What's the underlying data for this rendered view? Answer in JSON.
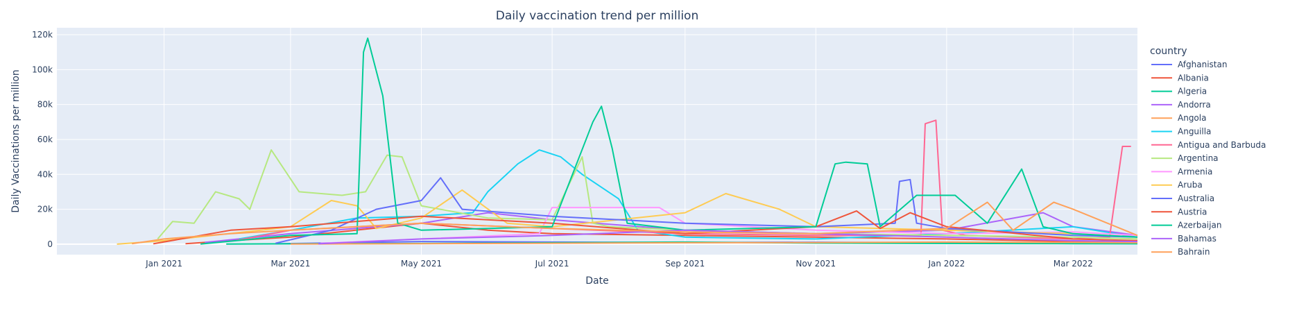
{
  "chart_data": {
    "type": "line",
    "title": "Daily vaccination trend per million",
    "xlabel": "Date",
    "ylabel": "Daily Vaccinations per million",
    "x_range": [
      "2020-11-12",
      "2022-03-31"
    ],
    "ylim": [
      -6000,
      124000
    ],
    "y_ticks": [
      {
        "value": 0,
        "label": "0"
      },
      {
        "value": 20000,
        "label": "20k"
      },
      {
        "value": 40000,
        "label": "40k"
      },
      {
        "value": 60000,
        "label": "60k"
      },
      {
        "value": 80000,
        "label": "80k"
      },
      {
        "value": 100000,
        "label": "100k"
      },
      {
        "value": 120000,
        "label": "120k"
      }
    ],
    "x_ticks": [
      {
        "value": "2021-01-01",
        "label": "Jan 2021"
      },
      {
        "value": "2021-03-01",
        "label": "Mar 2021"
      },
      {
        "value": "2021-05-01",
        "label": "May 2021"
      },
      {
        "value": "2021-07-01",
        "label": "Jul 2021"
      },
      {
        "value": "2021-09-01",
        "label": "Sep 2021"
      },
      {
        "value": "2021-11-01",
        "label": "Nov 2021"
      },
      {
        "value": "2022-01-01",
        "label": "Jan 2022"
      },
      {
        "value": "2022-03-01",
        "label": "Mar 2022"
      }
    ],
    "grid": true,
    "legend_title": "country",
    "legend_position": "right",
    "series": [
      {
        "name": "Afghanistan",
        "color": "#636efa",
        "x": [
          "2021-02-22",
          "2021-05-01",
          "2021-07-01",
          "2021-09-01",
          "2021-11-01",
          "2022-01-01",
          "2022-03-01",
          "2022-03-31"
        ],
        "y": [
          200,
          1500,
          1200,
          900,
          1100,
          800,
          600,
          500
        ]
      },
      {
        "name": "Albania",
        "color": "#EF553B",
        "x": [
          "2021-01-11",
          "2021-02-01",
          "2021-03-01",
          "2021-05-01",
          "2021-06-01",
          "2021-07-01",
          "2021-09-01",
          "2021-11-01",
          "2022-01-01",
          "2022-03-01",
          "2022-03-31"
        ],
        "y": [
          300,
          2000,
          4000,
          12000,
          8000,
          6000,
          5000,
          4000,
          3000,
          1500,
          1000
        ]
      },
      {
        "name": "Algeria",
        "color": "#00cc96",
        "x": [
          "2021-01-30",
          "2021-05-01",
          "2021-07-01",
          "2021-09-01",
          "2021-11-01",
          "2022-01-01",
          "2022-03-01",
          "2022-03-31"
        ],
        "y": [
          100,
          400,
          800,
          1200,
          600,
          400,
          300,
          200
        ]
      },
      {
        "name": "Andorra",
        "color": "#ab63fa",
        "x": [
          "2021-01-20",
          "2021-03-01",
          "2021-05-01",
          "2021-06-01",
          "2021-07-01",
          "2021-09-01",
          "2021-11-01",
          "2022-01-01",
          "2022-02-15",
          "2022-03-01",
          "2022-03-31"
        ],
        "y": [
          1000,
          6000,
          12000,
          18000,
          14000,
          8000,
          6000,
          8000,
          18000,
          10000,
          5000
        ]
      },
      {
        "name": "Angola",
        "color": "#FFA15A",
        "x": [
          "2021-03-01",
          "2021-05-01",
          "2021-07-01",
          "2021-09-01",
          "2021-11-01",
          "2022-01-01",
          "2022-03-01",
          "2022-03-31"
        ],
        "y": [
          100,
          300,
          500,
          800,
          900,
          1200,
          1000,
          800
        ]
      },
      {
        "name": "Anguilla",
        "color": "#19d3f3",
        "x": [
          "2021-02-05",
          "2021-03-01",
          "2021-04-01",
          "2021-05-01",
          "2021-05-25",
          "2021-06-01",
          "2021-06-15",
          "2021-06-25",
          "2021-07-05",
          "2021-07-15",
          "2021-08-01",
          "2021-08-10",
          "2021-09-01",
          "2021-11-01",
          "2022-01-01",
          "2022-03-01",
          "2022-03-31"
        ],
        "y": [
          3000,
          8000,
          15000,
          16000,
          18000,
          30000,
          46000,
          54000,
          50000,
          40000,
          26000,
          8000,
          4000,
          3000,
          6000,
          10000,
          4000
        ]
      },
      {
        "name": "Antigua and Barbuda",
        "color": "#FF6692",
        "x": [
          "2021-02-03",
          "2021-03-01",
          "2021-04-01",
          "2021-05-01",
          "2021-07-01",
          "2021-09-01",
          "2021-11-01",
          "2021-12-20",
          "2021-12-22",
          "2021-12-27",
          "2021-12-30",
          "2022-01-10",
          "2022-02-01",
          "2022-03-01",
          "2022-03-18",
          "2022-03-24",
          "2022-03-28"
        ],
        "y": [
          2000,
          8000,
          10000,
          12000,
          9000,
          6000,
          5000,
          5000,
          69000,
          71000,
          8000,
          5000,
          4000,
          3000,
          4000,
          56000,
          56000
        ]
      },
      {
        "name": "Argentina",
        "color": "#B6E880",
        "x": [
          "2020-12-29",
          "2021-01-05",
          "2021-01-15",
          "2021-01-25",
          "2021-02-05",
          "2021-02-10",
          "2021-02-20",
          "2021-03-05",
          "2021-03-25",
          "2021-04-05",
          "2021-04-15",
          "2021-04-22",
          "2021-05-01",
          "2021-06-01",
          "2021-07-01",
          "2021-07-15",
          "2021-07-20",
          "2021-07-28",
          "2021-09-01",
          "2021-11-01",
          "2022-01-01",
          "2022-03-01",
          "2022-03-31"
        ],
        "y": [
          3000,
          13000,
          12000,
          30000,
          26000,
          20000,
          54000,
          30000,
          28000,
          30000,
          51000,
          50000,
          22000,
          15000,
          14000,
          50000,
          12000,
          10000,
          8000,
          6000,
          5000,
          4000,
          3000
        ]
      },
      {
        "name": "Armenia",
        "color": "#FF97FF",
        "x": [
          "2021-03-15",
          "2021-05-01",
          "2021-06-25",
          "2021-07-01",
          "2021-08-01",
          "2021-08-20",
          "2021-09-01",
          "2021-11-01",
          "2022-01-01",
          "2022-03-01",
          "2022-03-31"
        ],
        "y": [
          500,
          3000,
          6000,
          21000,
          21000,
          21000,
          12000,
          8000,
          6000,
          7000,
          5000
        ]
      },
      {
        "name": "Aruba",
        "color": "#FECB52",
        "x": [
          "2020-12-10",
          "2021-01-01",
          "2021-02-15",
          "2021-03-01",
          "2021-03-20",
          "2021-04-01",
          "2021-04-10",
          "2021-05-01",
          "2021-05-20",
          "2021-06-10",
          "2021-07-01",
          "2021-09-01",
          "2021-09-20",
          "2021-10-15",
          "2021-11-01",
          "2022-01-01",
          "2022-03-01",
          "2022-03-31"
        ],
        "y": [
          0,
          2000,
          8000,
          10000,
          25000,
          22000,
          9000,
          15000,
          31000,
          12000,
          10000,
          18000,
          29000,
          20000,
          10000,
          8000,
          6000,
          4000
        ]
      },
      {
        "name": "Australia",
        "color": "#636efa",
        "x": [
          "2021-02-22",
          "2021-03-20",
          "2021-04-10",
          "2021-05-01",
          "2021-05-10",
          "2021-05-20",
          "2021-07-01",
          "2021-09-01",
          "2021-11-01",
          "2021-12-08",
          "2021-12-10",
          "2021-12-15",
          "2021-12-18",
          "2022-01-01",
          "2022-03-01",
          "2022-03-31"
        ],
        "y": [
          500,
          8000,
          20000,
          25000,
          38000,
          20000,
          16000,
          12000,
          10000,
          12000,
          36000,
          37000,
          12000,
          9000,
          5000,
          4000
        ]
      },
      {
        "name": "Austria",
        "color": "#EF553B",
        "x": [
          "2020-12-27",
          "2021-02-01",
          "2021-03-01",
          "2021-05-01",
          "2021-07-01",
          "2021-09-01",
          "2021-11-01",
          "2021-11-20",
          "2021-12-01",
          "2021-12-15",
          "2022-01-01",
          "2022-03-01",
          "2022-03-31"
        ],
        "y": [
          200,
          8000,
          10000,
          16000,
          12000,
          6000,
          10000,
          19000,
          9000,
          18000,
          10000,
          3000,
          2000
        ]
      },
      {
        "name": "Azerbaijan",
        "color": "#00cc96",
        "x": [
          "2021-01-18",
          "2021-03-01",
          "2021-04-01",
          "2021-04-04",
          "2021-04-06",
          "2021-04-13",
          "2021-04-20",
          "2021-05-01",
          "2021-07-01",
          "2021-07-20",
          "2021-07-24",
          "2021-07-29",
          "2021-08-05",
          "2021-09-01",
          "2021-11-01",
          "2021-11-10",
          "2021-11-15",
          "2021-11-25",
          "2021-12-01",
          "2021-12-18",
          "2022-01-05",
          "2022-01-20",
          "2022-02-05",
          "2022-02-15",
          "2022-03-01",
          "2022-03-31"
        ],
        "y": [
          100,
          5000,
          6000,
          110000,
          118000,
          85000,
          12000,
          8000,
          10000,
          70000,
          79000,
          55000,
          12000,
          8000,
          10000,
          46000,
          47000,
          46000,
          10000,
          28000,
          28000,
          12000,
          43000,
          10000,
          6000,
          4000
        ]
      },
      {
        "name": "Bahamas",
        "color": "#ab63fa",
        "x": [
          "2021-03-14",
          "2021-05-01",
          "2021-07-01",
          "2021-09-01",
          "2021-11-01",
          "2022-01-01",
          "2022-03-01",
          "2022-03-31"
        ],
        "y": [
          200,
          3000,
          5000,
          8000,
          6000,
          4000,
          2000,
          1500
        ]
      },
      {
        "name": "Bahrain",
        "color": "#FFA15A",
        "x": [
          "2020-12-17",
          "2021-01-01",
          "2021-02-01",
          "2021-03-01",
          "2021-05-01",
          "2021-07-01",
          "2021-09-01",
          "2021-11-01",
          "2022-01-01",
          "2022-01-20",
          "2022-02-01",
          "2022-02-20",
          "2022-03-01",
          "2022-03-31"
        ],
        "y": [
          300,
          3000,
          6000,
          8000,
          12000,
          9000,
          7000,
          6000,
          9000,
          24000,
          8000,
          24000,
          20000,
          5000
        ]
      }
    ]
  }
}
